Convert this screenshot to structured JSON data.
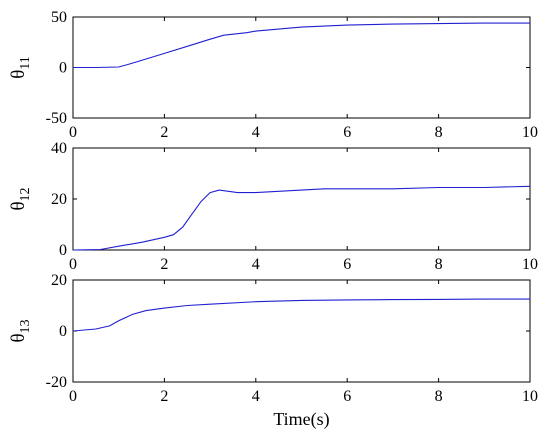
{
  "chart_data": [
    {
      "type": "line",
      "ylabel": {
        "symbol": "θ",
        "subscript": "11"
      },
      "xlim": [
        0,
        10
      ],
      "ylim": [
        -50,
        50
      ],
      "x_ticks": [
        "0",
        "2",
        "4",
        "6",
        "8",
        "10"
      ],
      "y_ticks": [
        "-50",
        "0",
        "50"
      ],
      "x_tick_values": [
        0,
        2,
        4,
        6,
        8,
        10
      ],
      "y_tick_values": [
        -50,
        0,
        50
      ],
      "series": [
        {
          "color": "#2020d0",
          "x": [
            0,
            0.5,
            1.0,
            1.2,
            1.5,
            2.0,
            2.5,
            3.0,
            3.3,
            3.5,
            3.8,
            4.0,
            4.5,
            5.0,
            5.5,
            6.0,
            7.0,
            8.0,
            9.0,
            10.0
          ],
          "y": [
            0,
            0,
            0.5,
            3,
            7,
            14,
            21,
            28,
            32,
            33,
            34.5,
            36,
            38,
            40,
            41,
            42,
            43,
            43.5,
            44,
            44
          ]
        }
      ]
    },
    {
      "type": "line",
      "ylabel": {
        "symbol": "θ",
        "subscript": "12"
      },
      "xlim": [
        0,
        10
      ],
      "ylim": [
        0,
        40
      ],
      "x_ticks": [
        "0",
        "2",
        "4",
        "6",
        "8",
        "10"
      ],
      "y_ticks": [
        "0",
        "20",
        "40"
      ],
      "x_tick_values": [
        0,
        2,
        4,
        6,
        8,
        10
      ],
      "y_tick_values": [
        0,
        20,
        40
      ],
      "series": [
        {
          "color": "#2020d0",
          "x": [
            0,
            0.6,
            1.0,
            1.5,
            2.0,
            2.2,
            2.4,
            2.6,
            2.8,
            3.0,
            3.2,
            3.4,
            3.6,
            4.0,
            4.5,
            5.0,
            5.5,
            6.0,
            7.0,
            8.0,
            9.0,
            10.0
          ],
          "y": [
            0,
            0.2,
            1.5,
            3,
            5,
            6,
            9,
            14,
            19,
            22.5,
            23.5,
            23,
            22.5,
            22.5,
            23,
            23.5,
            24,
            24,
            24,
            24.5,
            24.5,
            25
          ]
        }
      ]
    },
    {
      "type": "line",
      "ylabel": {
        "symbol": "θ",
        "subscript": "13"
      },
      "xlabel": "Time(s)",
      "xlim": [
        0,
        10
      ],
      "ylim": [
        -20,
        20
      ],
      "x_ticks": [
        "0",
        "2",
        "4",
        "6",
        "8",
        "10"
      ],
      "y_ticks": [
        "-20",
        "0",
        "20"
      ],
      "x_tick_values": [
        0,
        2,
        4,
        6,
        8,
        10
      ],
      "y_tick_values": [
        -20,
        0,
        20
      ],
      "series": [
        {
          "color": "#2020d0",
          "x": [
            0,
            0.5,
            0.8,
            1.0,
            1.3,
            1.6,
            2.0,
            2.5,
            3.0,
            4.0,
            5.0,
            6.0,
            7.0,
            8.0,
            9.0,
            10.0
          ],
          "y": [
            0,
            0.8,
            2,
            4,
            6.5,
            8,
            9,
            10,
            10.5,
            11.5,
            12,
            12.2,
            12.3,
            12.4,
            12.5,
            12.5
          ]
        }
      ]
    }
  ]
}
